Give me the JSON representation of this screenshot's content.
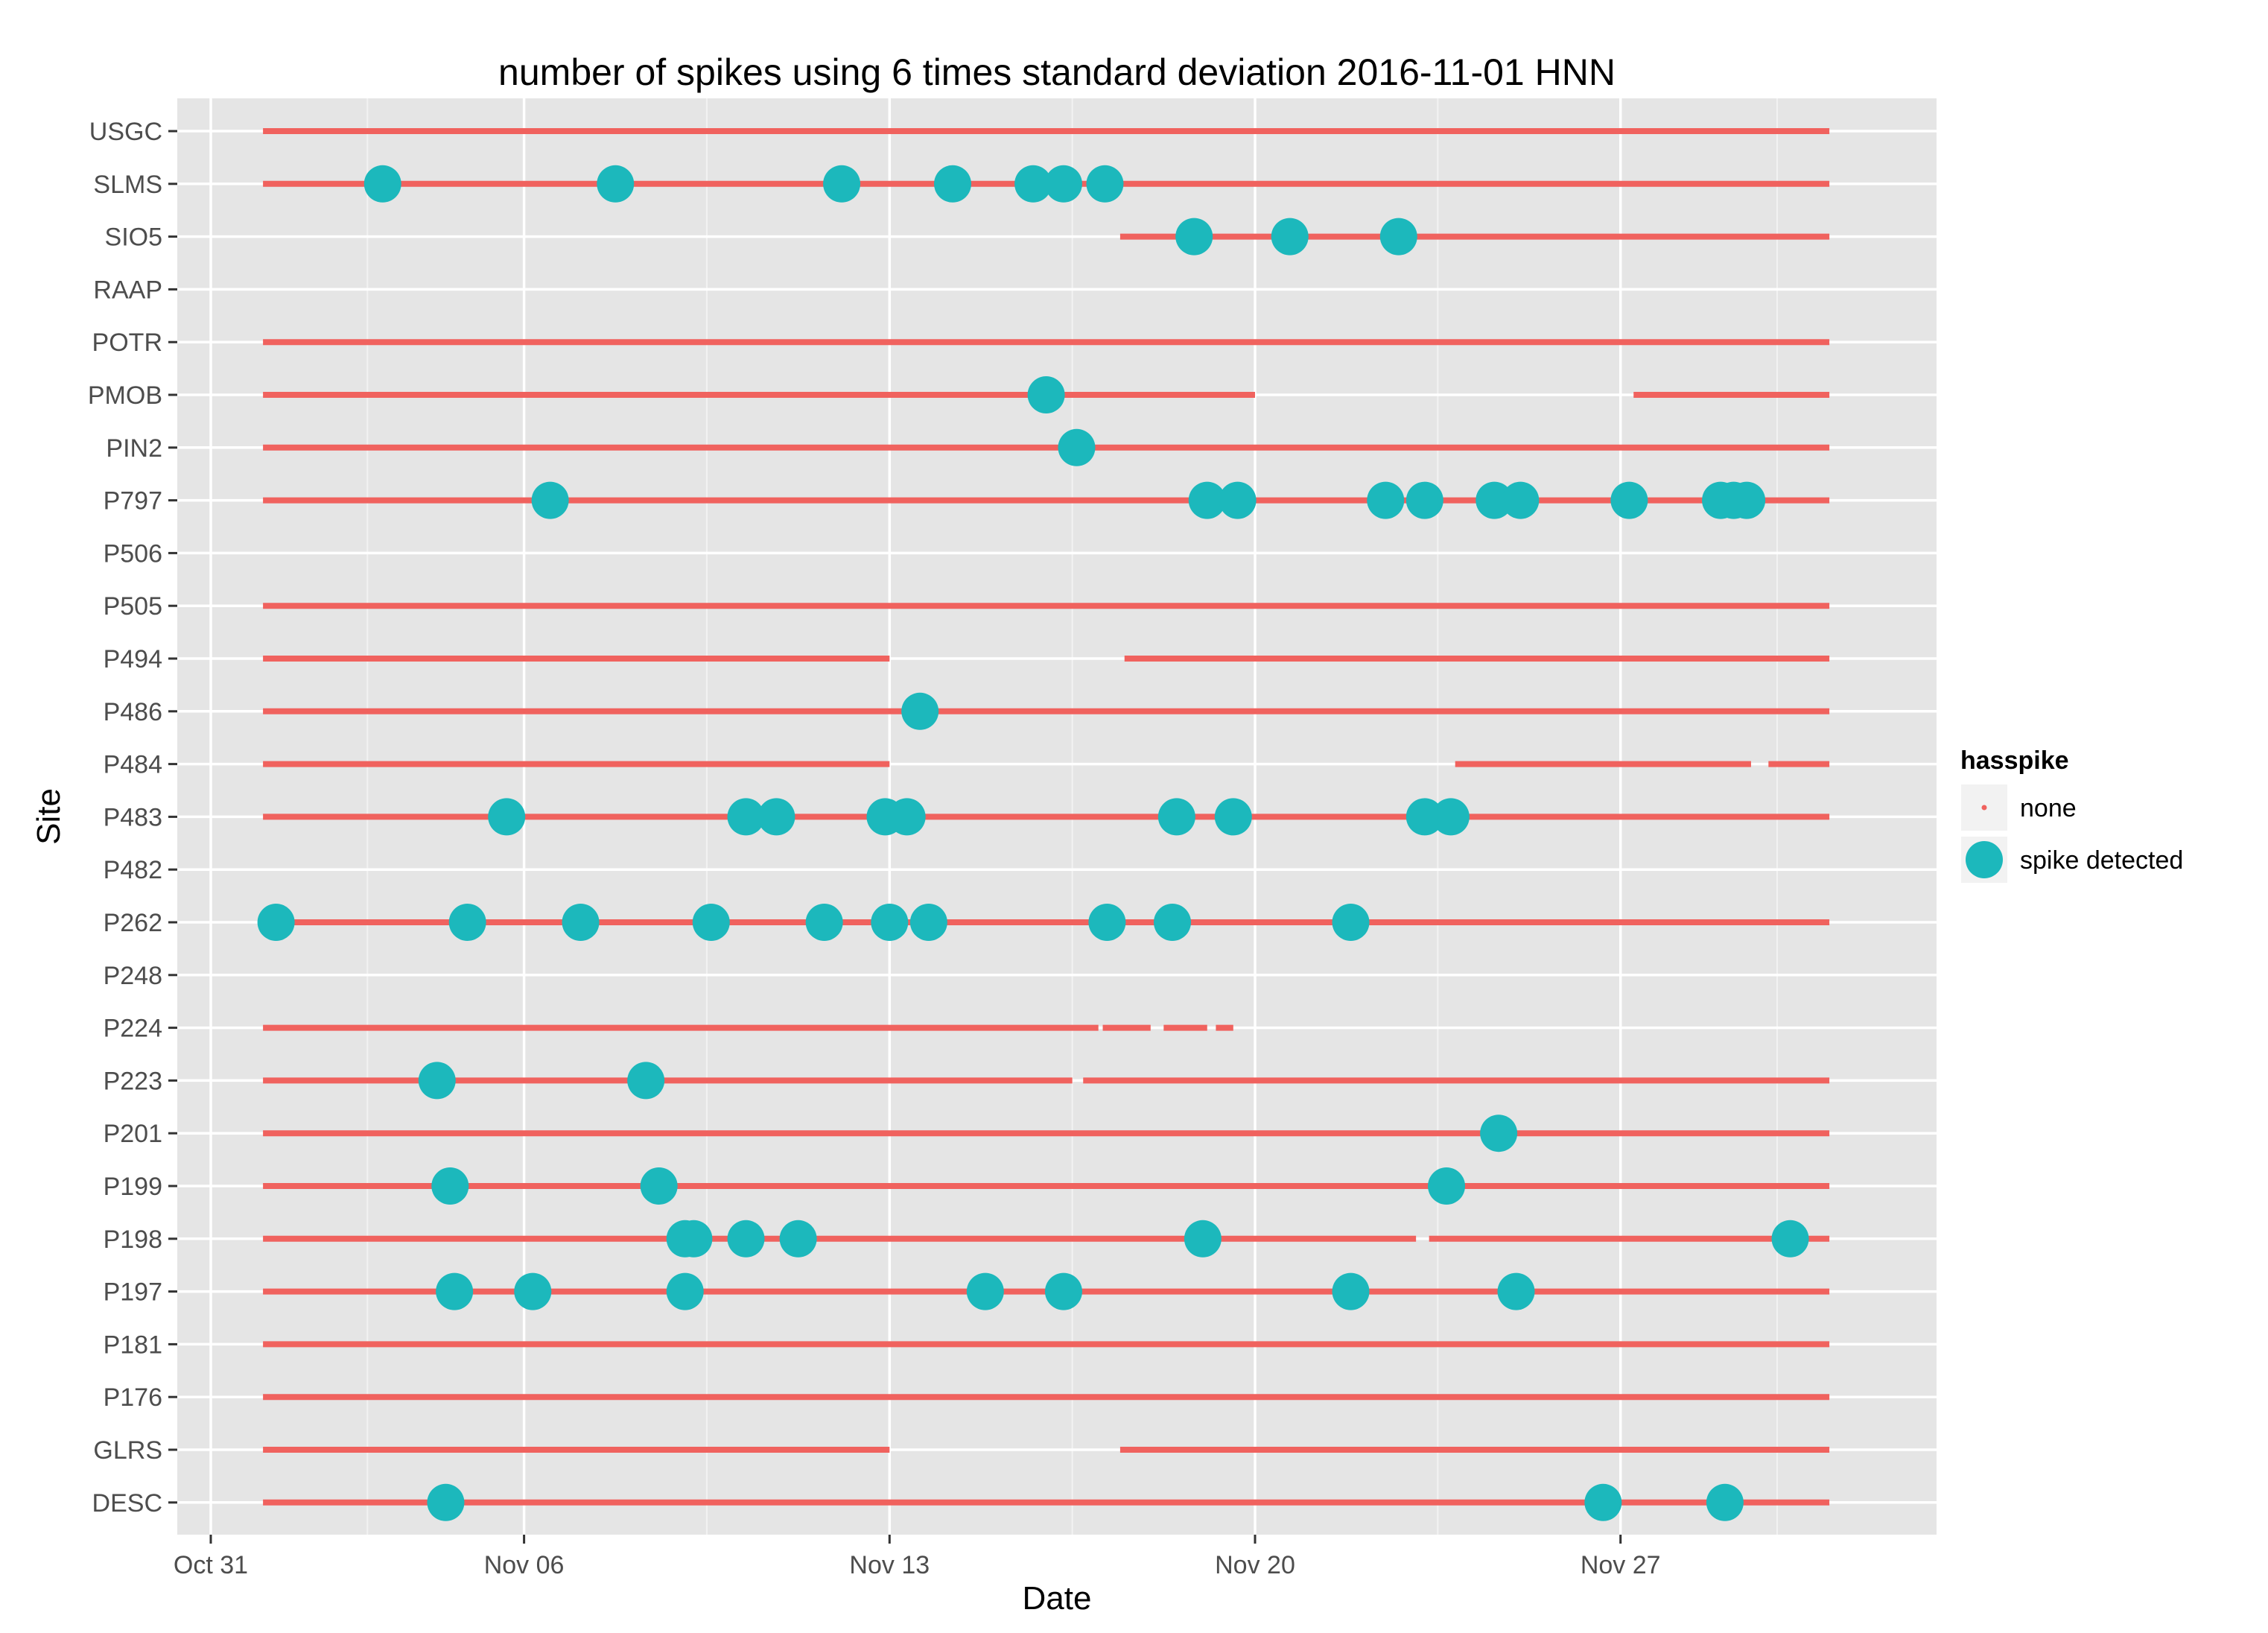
{
  "chart_data": {
    "type": "scatter",
    "title": "number of spikes using  6 times standard deviation 2016-11-01 HNN",
    "xlabel": "Date",
    "ylabel": "Site",
    "x_ticks": [
      {
        "date": "2016-10-31",
        "label": "Oct 31"
      },
      {
        "date": "2016-11-06",
        "label": "Nov 06"
      },
      {
        "date": "2016-11-13",
        "label": "Nov 13"
      },
      {
        "date": "2016-11-20",
        "label": "Nov 20"
      },
      {
        "date": "2016-11-27",
        "label": "Nov 27"
      }
    ],
    "xlim": [
      "2016-10-31T00:00",
      "2016-12-02T00:00"
    ],
    "grid": true,
    "legend": {
      "title": "hasspike",
      "position": "right",
      "entries": [
        {
          "label": "none",
          "color": "#F0625E"
        },
        {
          "label": "spike detected",
          "color": "#1CB8BC"
        }
      ]
    },
    "colors": {
      "panel": "#E5E5E5",
      "grid": "#FFFFFF",
      "none": "#F0625E",
      "spike": "#1CB8BC",
      "axis_text": "#4D4D4D"
    },
    "sites": [
      "USGC",
      "SLMS",
      "SIO5",
      "RAAP",
      "POTR",
      "PMOB",
      "PIN2",
      "P797",
      "P506",
      "P505",
      "P494",
      "P486",
      "P484",
      "P483",
      "P482",
      "P262",
      "P248",
      "P224",
      "P223",
      "P201",
      "P199",
      "P198",
      "P197",
      "P181",
      "P176",
      "GLRS",
      "DESC"
    ],
    "series": [
      {
        "name": "none",
        "coverage": [
          {
            "site": "USGC",
            "segments": [
              [
                "2016-11-01T00:00",
                "2016-12-01T00:00"
              ]
            ]
          },
          {
            "site": "SLMS",
            "segments": [
              [
                "2016-11-01T00:00",
                "2016-12-01T00:00"
              ]
            ]
          },
          {
            "site": "SIO5",
            "segments": [
              [
                "2016-11-17T10:00",
                "2016-12-01T00:00"
              ]
            ]
          },
          {
            "site": "POTR",
            "segments": [
              [
                "2016-11-01T00:00",
                "2016-12-01T00:00"
              ]
            ]
          },
          {
            "site": "PMOB",
            "segments": [
              [
                "2016-11-01T00:00",
                "2016-11-20T00:00"
              ],
              [
                "2016-11-27T06:00",
                "2016-12-01T00:00"
              ]
            ]
          },
          {
            "site": "PIN2",
            "segments": [
              [
                "2016-11-01T00:00",
                "2016-12-01T00:00"
              ]
            ]
          },
          {
            "site": "P797",
            "segments": [
              [
                "2016-11-01T00:00",
                "2016-12-01T00:00"
              ]
            ]
          },
          {
            "site": "P505",
            "segments": [
              [
                "2016-11-01T00:00",
                "2016-12-01T00:00"
              ]
            ]
          },
          {
            "site": "P494",
            "segments": [
              [
                "2016-11-01T00:00",
                "2016-11-13T00:00"
              ],
              [
                "2016-11-17T12:00",
                "2016-12-01T00:00"
              ]
            ]
          },
          {
            "site": "P486",
            "segments": [
              [
                "2016-11-01T00:00",
                "2016-12-01T00:00"
              ]
            ]
          },
          {
            "site": "P484",
            "segments": [
              [
                "2016-11-01T00:00",
                "2016-11-13T00:00"
              ],
              [
                "2016-11-23T20:00",
                "2016-11-29T12:00"
              ],
              [
                "2016-11-29T20:00",
                "2016-12-01T00:00"
              ]
            ]
          },
          {
            "site": "P483",
            "segments": [
              [
                "2016-11-01T00:00",
                "2016-12-01T00:00"
              ]
            ]
          },
          {
            "site": "P262",
            "segments": [
              [
                "2016-11-01T00:00",
                "2016-12-01T00:00"
              ]
            ]
          },
          {
            "site": "P224",
            "segments": [
              [
                "2016-11-01T00:00",
                "2016-11-17T00:00"
              ],
              [
                "2016-11-17T02:00",
                "2016-11-18T00:00"
              ],
              [
                "2016-11-18T06:00",
                "2016-11-19T02:00"
              ],
              [
                "2016-11-19T06:00",
                "2016-11-19T14:00"
              ]
            ]
          },
          {
            "site": "P223",
            "segments": [
              [
                "2016-11-01T00:00",
                "2016-11-16T12:00"
              ],
              [
                "2016-11-16T17:00",
                "2016-12-01T00:00"
              ]
            ]
          },
          {
            "site": "P201",
            "segments": [
              [
                "2016-11-01T00:00",
                "2016-12-01T00:00"
              ]
            ]
          },
          {
            "site": "P199",
            "segments": [
              [
                "2016-11-01T00:00",
                "2016-12-01T00:00"
              ]
            ]
          },
          {
            "site": "P198",
            "segments": [
              [
                "2016-11-01T00:00",
                "2016-11-23T02:00"
              ],
              [
                "2016-11-23T08:00",
                "2016-12-01T00:00"
              ]
            ]
          },
          {
            "site": "P197",
            "segments": [
              [
                "2016-11-01T00:00",
                "2016-12-01T00:00"
              ]
            ]
          },
          {
            "site": "P181",
            "segments": [
              [
                "2016-11-01T00:00",
                "2016-12-01T00:00"
              ]
            ]
          },
          {
            "site": "P176",
            "segments": [
              [
                "2016-11-01T00:00",
                "2016-12-01T00:00"
              ]
            ]
          },
          {
            "site": "GLRS",
            "segments": [
              [
                "2016-11-01T00:00",
                "2016-11-13T00:00"
              ],
              [
                "2016-11-17T10:00",
                "2016-12-01T00:00"
              ]
            ]
          },
          {
            "site": "DESC",
            "segments": [
              [
                "2016-11-01T00:00",
                "2016-12-01T00:00"
              ]
            ]
          }
        ]
      },
      {
        "name": "spike detected",
        "points": [
          {
            "site": "SLMS",
            "x": [
              "2016-11-03T07:00",
              "2016-11-07T18:00",
              "2016-11-12T02:00",
              "2016-11-14T05:00",
              "2016-11-15T18:00",
              "2016-11-16T08:00",
              "2016-11-17T03:00"
            ]
          },
          {
            "site": "SIO5",
            "x": [
              "2016-11-18T20:00",
              "2016-11-20T16:00",
              "2016-11-22T18:00"
            ]
          },
          {
            "site": "PMOB",
            "x": [
              "2016-11-16T00:00"
            ]
          },
          {
            "site": "PIN2",
            "x": [
              "2016-11-16T14:00"
            ]
          },
          {
            "site": "P797",
            "x": [
              "2016-11-06T12:00",
              "2016-11-19T02:00",
              "2016-11-19T16:00",
              "2016-11-22T12:00",
              "2016-11-23T06:00",
              "2016-11-24T14:00",
              "2016-11-25T02:00",
              "2016-11-27T04:00",
              "2016-11-28T22:00",
              "2016-11-29T04:00",
              "2016-11-29T10:00"
            ]
          },
          {
            "site": "P486",
            "x": [
              "2016-11-13T14:00"
            ]
          },
          {
            "site": "P483",
            "x": [
              "2016-11-05T16:00",
              "2016-11-10T06:00",
              "2016-11-10T20:00",
              "2016-11-12T22:00",
              "2016-11-13T08:00",
              "2016-11-18T12:00",
              "2016-11-19T14:00",
              "2016-11-23T06:00",
              "2016-11-23T18:00"
            ]
          },
          {
            "site": "P262",
            "x": [
              "2016-11-01T06:00",
              "2016-11-04T22:00",
              "2016-11-07T02:00",
              "2016-11-09T14:00",
              "2016-11-11T18:00",
              "2016-11-13T00:00",
              "2016-11-13T18:00",
              "2016-11-17T04:00",
              "2016-11-18T10:00",
              "2016-11-21T20:00"
            ]
          },
          {
            "site": "P223",
            "x": [
              "2016-11-04T08:00",
              "2016-11-08T08:00"
            ]
          },
          {
            "site": "P201",
            "x": [
              "2016-11-24T16:00"
            ]
          },
          {
            "site": "P199",
            "x": [
              "2016-11-04T14:00",
              "2016-11-08T14:00",
              "2016-11-23T16:00"
            ]
          },
          {
            "site": "P198",
            "x": [
              "2016-11-09T02:00",
              "2016-11-09T06:00",
              "2016-11-10T06:00",
              "2016-11-11T06:00",
              "2016-11-19T00:00",
              "2016-11-30T06:00"
            ]
          },
          {
            "site": "P197",
            "x": [
              "2016-11-04T16:00",
              "2016-11-06T04:00",
              "2016-11-09T02:00",
              "2016-11-14T20:00",
              "2016-11-16T08:00",
              "2016-11-21T20:00",
              "2016-11-25T00:00"
            ]
          },
          {
            "site": "DESC",
            "x": [
              "2016-11-04T12:00",
              "2016-11-26T16:00",
              "2016-11-29T00:00"
            ]
          }
        ]
      }
    ]
  }
}
